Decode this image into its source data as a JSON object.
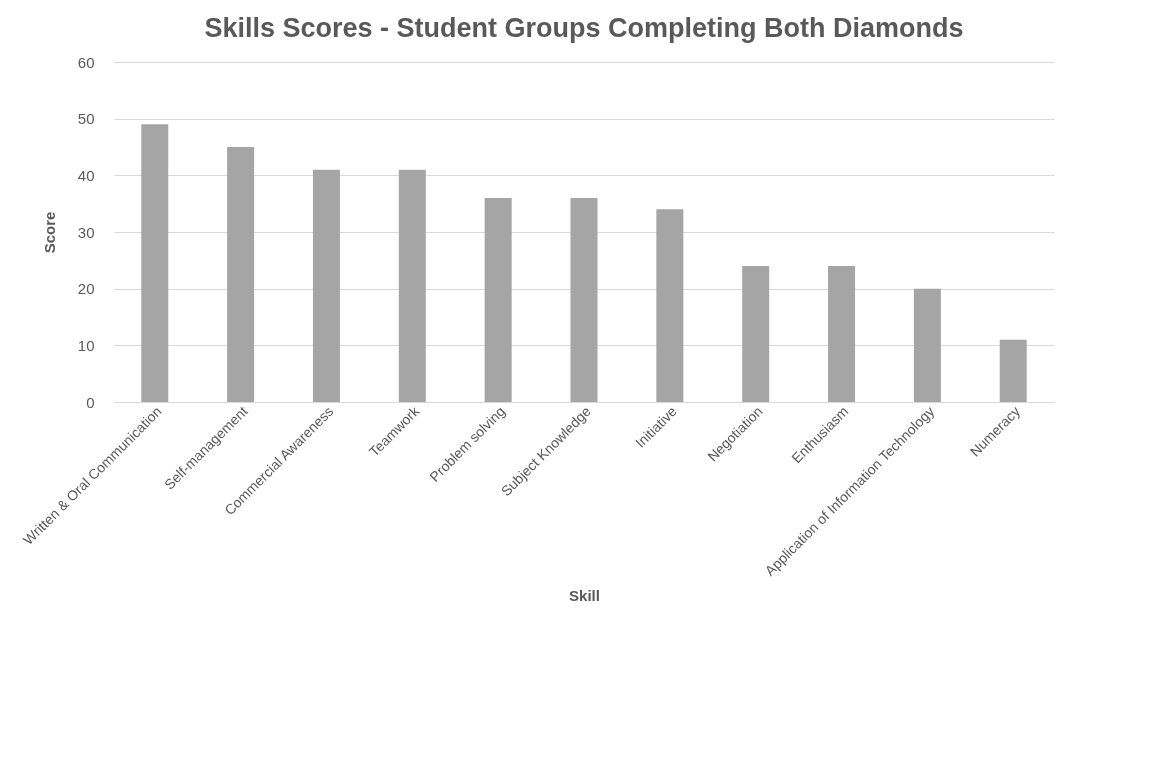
{
  "chart_data": {
    "type": "bar",
    "title": "Skills Scores - Student Groups Completing Both Diamonds",
    "xlabel": "Skill",
    "ylabel": "Score",
    "categories": [
      "Written & Oral Communication",
      "Self-management",
      "Commercial Awareness",
      "Teamwork",
      "Problem solving",
      "Subject Knowledge",
      "Initiative",
      "Negotiation",
      "Enthusiasm",
      "Application of Information Technology",
      "Numeracy"
    ],
    "values": [
      49,
      45,
      41,
      41,
      36,
      36,
      34,
      24,
      24,
      20,
      11
    ],
    "color": "#a5a5a5",
    "ylim": [
      0,
      60
    ],
    "yticks": [
      0,
      10,
      20,
      30,
      40,
      50,
      60
    ],
    "grid": "y"
  }
}
